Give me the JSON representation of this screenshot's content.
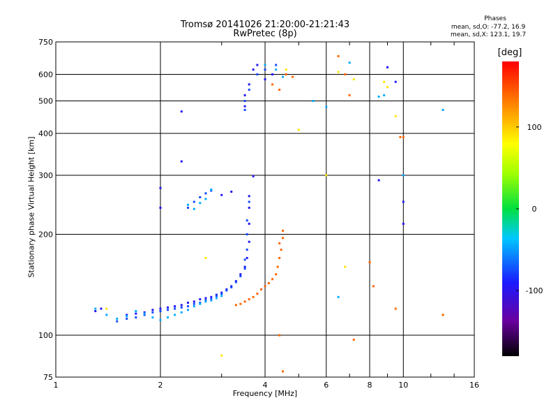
{
  "chart_data": {
    "type": "scatter",
    "title": "Tromsø 20141026 21:20:00-21:21:43",
    "subtitle": "RwPretec (8p)",
    "stats_header": "Phases",
    "stats_o": "mean, sd,O: -77.2, 16.9",
    "stats_x": "mean, sd,X: 123.1, 19.7",
    "xlabel": "Frequency [MHz]",
    "ylabel": "Stationary phase Virtual Height [km]",
    "xscale": "log",
    "yscale": "log",
    "xlim": [
      1,
      16
    ],
    "ylim": [
      75,
      750
    ],
    "xticks": [
      1,
      2,
      4,
      6,
      8,
      10,
      16
    ],
    "xtick_labels": [
      "1",
      "2",
      "4",
      "6",
      "8",
      "10",
      "16"
    ],
    "yticks": [
      75,
      100,
      200,
      300,
      400,
      500,
      600,
      750
    ],
    "ytick_labels": [
      "75",
      "100",
      "200",
      "300",
      "400",
      "500",
      "600",
      "750"
    ],
    "grid": true,
    "colorbar": {
      "label": "[deg]",
      "range": [
        -180,
        180
      ],
      "ticks": [
        100,
        0,
        -100
      ],
      "tick_labels": [
        "100",
        "0",
        "-100"
      ],
      "colormap": "rainbow"
    },
    "series": [
      {
        "phase_deg": -95,
        "points": [
          [
            1.3,
            118
          ],
          [
            1.35,
            120
          ],
          [
            1.6,
            115
          ],
          [
            1.7,
            116
          ],
          [
            1.8,
            117
          ],
          [
            1.9,
            119
          ],
          [
            2.0,
            120
          ],
          [
            2.1,
            121
          ],
          [
            2.2,
            122
          ],
          [
            2.3,
            123
          ],
          [
            2.4,
            125
          ],
          [
            2.5,
            126
          ],
          [
            2.6,
            128
          ],
          [
            2.7,
            129
          ],
          [
            2.8,
            130
          ],
          [
            2.9,
            132
          ],
          [
            3.0,
            134
          ],
          [
            3.1,
            137
          ],
          [
            3.2,
            140
          ],
          [
            3.3,
            145
          ],
          [
            3.4,
            152
          ],
          [
            3.5,
            160
          ],
          [
            3.55,
            170
          ],
          [
            3.6,
            190
          ],
          [
            3.6,
            215
          ],
          [
            3.6,
            240
          ],
          [
            3.6,
            260
          ],
          [
            3.7,
            298
          ],
          [
            3.5,
            482
          ],
          [
            3.5,
            520
          ],
          [
            3.6,
            560
          ],
          [
            3.7,
            620
          ],
          [
            3.8,
            640
          ],
          [
            4.0,
            580
          ],
          [
            4.2,
            600
          ],
          [
            2.3,
            465
          ],
          [
            2.3,
            330
          ],
          [
            2.0,
            240
          ],
          [
            2.0,
            275
          ],
          [
            3.0,
            262
          ],
          [
            3.2,
            268
          ],
          [
            8.5,
            290
          ],
          [
            9.0,
            630
          ],
          [
            9.5,
            570
          ],
          [
            10,
            215
          ],
          [
            10,
            250
          ]
        ]
      },
      {
        "phase_deg": -75,
        "points": [
          [
            1.5,
            110
          ],
          [
            1.6,
            112
          ],
          [
            1.7,
            113
          ],
          [
            1.8,
            115
          ],
          [
            1.9,
            117
          ],
          [
            2.0,
            118
          ],
          [
            2.1,
            119
          ],
          [
            2.2,
            120
          ],
          [
            2.3,
            121
          ],
          [
            2.4,
            122
          ],
          [
            2.5,
            124
          ],
          [
            2.6,
            125
          ],
          [
            2.7,
            127
          ],
          [
            2.8,
            128
          ],
          [
            2.9,
            131
          ],
          [
            3.0,
            133
          ],
          [
            3.1,
            136
          ],
          [
            3.2,
            139
          ],
          [
            3.3,
            144
          ],
          [
            3.4,
            150
          ],
          [
            3.5,
            158
          ],
          [
            3.5,
            168
          ],
          [
            3.55,
            180
          ],
          [
            3.55,
            200
          ],
          [
            3.55,
            220
          ],
          [
            3.6,
            250
          ],
          [
            3.5,
            470
          ],
          [
            3.6,
            540
          ],
          [
            3.8,
            600
          ],
          [
            4.0,
            620
          ],
          [
            4.3,
            640
          ],
          [
            2.4,
            240
          ],
          [
            2.5,
            250
          ],
          [
            2.6,
            258
          ],
          [
            2.7,
            265
          ],
          [
            2.8,
            270
          ],
          [
            3.5,
            500
          ]
        ]
      },
      {
        "phase_deg": -45,
        "points": [
          [
            1.3,
            120
          ],
          [
            1.4,
            115
          ],
          [
            1.5,
            112
          ],
          [
            1.6,
            114
          ],
          [
            1.7,
            118
          ],
          [
            1.8,
            116
          ],
          [
            1.9,
            113
          ],
          [
            2.0,
            111
          ],
          [
            2.1,
            113
          ],
          [
            2.2,
            115
          ],
          [
            2.3,
            117
          ],
          [
            2.4,
            119
          ],
          [
            2.5,
            122
          ],
          [
            2.6,
            124
          ],
          [
            2.7,
            126
          ],
          [
            2.8,
            127
          ],
          [
            2.9,
            129
          ],
          [
            3.0,
            131
          ],
          [
            2.4,
            245
          ],
          [
            2.5,
            238
          ],
          [
            2.6,
            248
          ],
          [
            2.7,
            255
          ],
          [
            2.8,
            272
          ],
          [
            4.0,
            640
          ],
          [
            4.3,
            620
          ],
          [
            4.5,
            590
          ],
          [
            5.5,
            500
          ],
          [
            6.0,
            480
          ],
          [
            6.5,
            130
          ],
          [
            7.0,
            650
          ],
          [
            8.5,
            515
          ],
          [
            8.8,
            520
          ],
          [
            10,
            300
          ],
          [
            13,
            470
          ],
          [
            4.4,
            100
          ]
        ]
      },
      {
        "phase_deg": 140,
        "points": [
          [
            3.3,
            123
          ],
          [
            3.4,
            124
          ],
          [
            3.5,
            126
          ],
          [
            3.6,
            128
          ],
          [
            3.7,
            130
          ],
          [
            3.8,
            133
          ],
          [
            3.9,
            137
          ],
          [
            4.0,
            140
          ],
          [
            4.1,
            143
          ],
          [
            4.2,
            147
          ],
          [
            4.3,
            152
          ],
          [
            4.35,
            160
          ],
          [
            4.4,
            170
          ],
          [
            4.45,
            180
          ],
          [
            4.5,
            195
          ],
          [
            4.5,
            205
          ],
          [
            4.4,
            188
          ],
          [
            4.6,
            600
          ],
          [
            4.8,
            590
          ],
          [
            4.4,
            540
          ],
          [
            4.2,
            560
          ],
          [
            6.5,
            680
          ],
          [
            6.8,
            600
          ],
          [
            7.0,
            520
          ],
          [
            9.8,
            390
          ],
          [
            10,
            390
          ],
          [
            8.2,
            140
          ],
          [
            9.5,
            120
          ],
          [
            13,
            115
          ],
          [
            4.4,
            100
          ],
          [
            4.5,
            78
          ],
          [
            7.2,
            97
          ],
          [
            8.0,
            165
          ]
        ]
      },
      {
        "phase_deg": 90,
        "points": [
          [
            4.6,
            620
          ],
          [
            5.0,
            410
          ],
          [
            6.0,
            300
          ],
          [
            6.5,
            610
          ],
          [
            7.2,
            580
          ],
          [
            8.8,
            570
          ],
          [
            9.5,
            450
          ],
          [
            1.4,
            120
          ],
          [
            3.0,
            87
          ],
          [
            2.7,
            170
          ],
          [
            6.8,
            160
          ],
          [
            9.0,
            550
          ]
        ]
      }
    ]
  }
}
